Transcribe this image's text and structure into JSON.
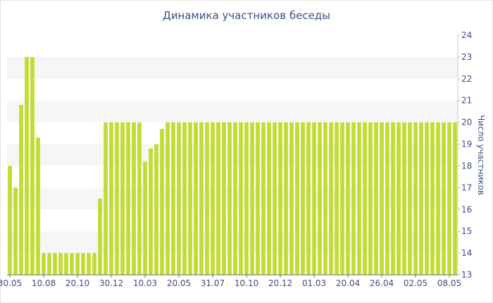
{
  "chart_data": {
    "type": "bar",
    "title": "Динамика участников беседы",
    "xlabel": "",
    "ylabel": "Число участников",
    "ylim": [
      13,
      24
    ],
    "yticks": [
      13,
      14,
      15,
      16,
      17,
      18,
      19,
      20,
      21,
      22,
      23,
      24
    ],
    "xtick_labels": [
      "30.05",
      "10.08",
      "20.10",
      "30.12",
      "10.03",
      "20.05",
      "31.07",
      "10.10",
      "20.12",
      "01.03",
      "20.04",
      "26.04",
      "02.05",
      "08.05"
    ],
    "xtick_bar_index": [
      0,
      6,
      12,
      18,
      24,
      30,
      36,
      42,
      48,
      54,
      60,
      66,
      72,
      78
    ],
    "grid": "alternating horizontal bands",
    "legend": "none",
    "bar_color": "#bfdd35",
    "values": [
      18,
      17,
      20.8,
      23,
      23,
      19.3,
      14,
      14,
      14,
      14,
      14,
      14,
      14,
      14,
      14,
      14,
      16.5,
      20,
      20,
      20,
      20,
      20,
      20,
      20,
      18.2,
      18.8,
      19,
      19.7,
      20,
      20,
      20,
      20,
      20,
      20,
      20,
      20,
      20,
      20,
      20,
      20,
      20,
      20,
      20,
      20,
      20,
      20,
      20,
      20,
      20,
      20,
      20,
      20,
      20,
      20,
      20,
      20,
      20,
      20,
      20,
      20,
      20,
      20,
      20,
      20,
      20,
      20,
      20,
      20,
      20,
      20,
      20,
      20,
      20,
      20,
      20,
      20,
      20,
      20,
      20,
      20
    ]
  }
}
